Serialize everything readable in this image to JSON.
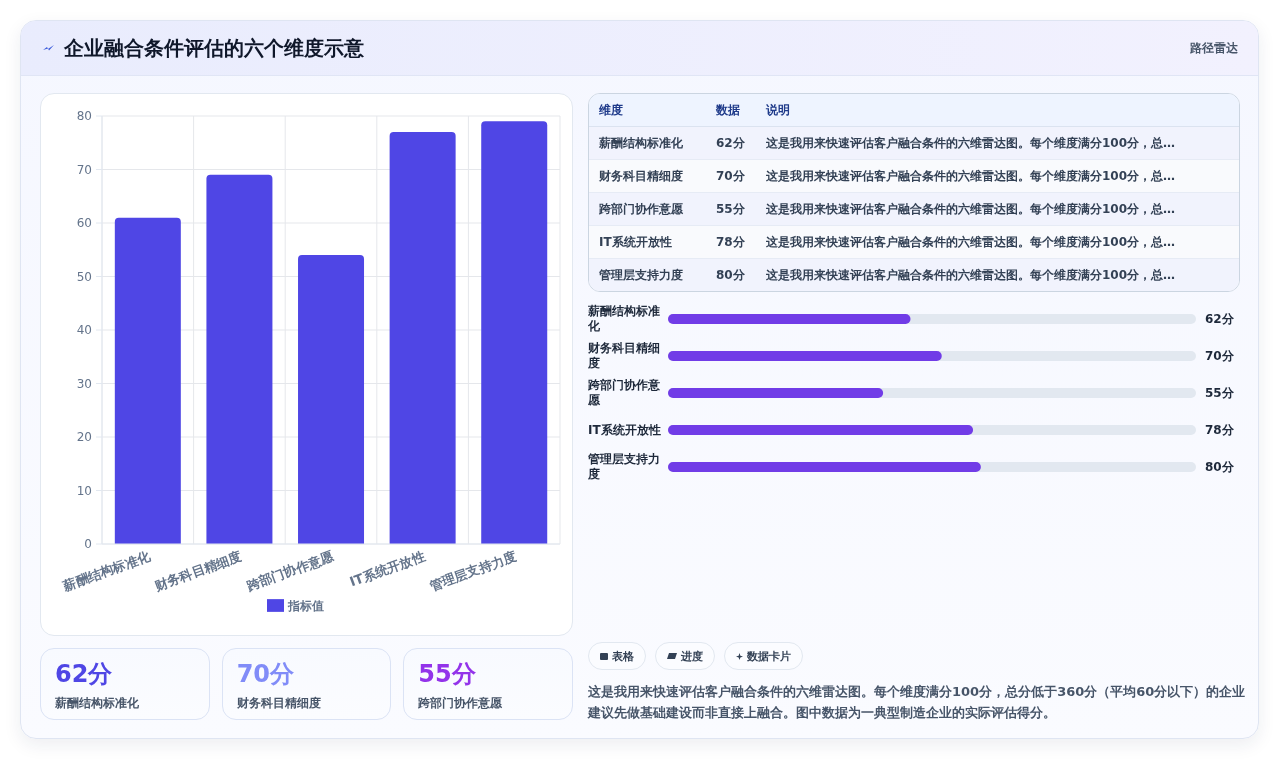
{
  "chart_data": [
    {
      "type": "bar",
      "title": "企业融合条件评估的六个维度示意",
      "annotations": [
        "路径雷达"
      ],
      "categories": [
        "薪酬结构标准化",
        "财务科目精细度",
        "跨部门协作意愿",
        "IT系统开放性",
        "管理层支持力度"
      ],
      "series": [
        {
          "name": "指标值",
          "color": "#4f46e5",
          "values": [
            61,
            69,
            54,
            77,
            79
          ]
        }
      ],
      "ylim": [
        0,
        80
      ],
      "yticks": [
        0,
        10,
        20,
        30,
        40,
        50,
        60,
        70,
        80
      ],
      "grid": true,
      "legend": "bottom"
    },
    {
      "type": "other",
      "ylabel": "维度",
      "categories": [
        "数据",
        "说明"
      ],
      "y_categories": [
        "薪酬结构标准化",
        "财务科目精细度",
        "跨部门协作意愿",
        "IT系统开放性",
        "管理层支持力度"
      ],
      "cell_labels": [
        [
          "62分",
          "这是我用来快速评估客户融合条件的六维雷达图。每个维度满分100分，总…"
        ],
        [
          "70分",
          "这是我用来快速评估客户融合条件的六维雷达图。每个维度满分100分，总…"
        ],
        [
          "55分",
          "这是我用来快速评估客户融合条件的六维雷达图。每个维度满分100分，总…"
        ],
        [
          "78分",
          "这是我用来快速评估客户融合条件的六维雷达图。每个维度满分100分，总…"
        ],
        [
          "80分",
          "这是我用来快速评估客户融合条件的六维雷达图。每个维度满分100分，总…"
        ]
      ]
    },
    {
      "type": "bar",
      "orientation": "horizontal",
      "categories": [
        "薪酬结构标准化",
        "财务科目精细度",
        "跨部门协作意愿",
        "IT系统开放性",
        "管理层支持力度"
      ],
      "values": [
        62,
        70,
        55,
        78,
        80
      ],
      "value_labels": [
        "62分",
        "70分",
        "55分",
        "78分",
        "80分"
      ],
      "color": "#713ce7",
      "xlim": [
        0,
        135
      ],
      "tick_labels": "y"
    },
    {
      "type": "other",
      "categories": [
        "薪酬结构标准化",
        "财务科目精细度",
        "跨部门协作意愿"
      ],
      "value_labels": [
        "62分",
        "70分",
        "55分"
      ]
    },
    {
      "type": "other",
      "categories": [
        "表格",
        "进度",
        "数据卡片"
      ],
      "annotations": [
        "这是我用来快速评估客户融合条件的六维雷达图。每个维度满分100分，总分低于360分（平均60分以下）的企业建议先做基础建设而非直接上融合。图中数据为一典型制造企业的实际评估得分。"
      ]
    }
  ]
}
